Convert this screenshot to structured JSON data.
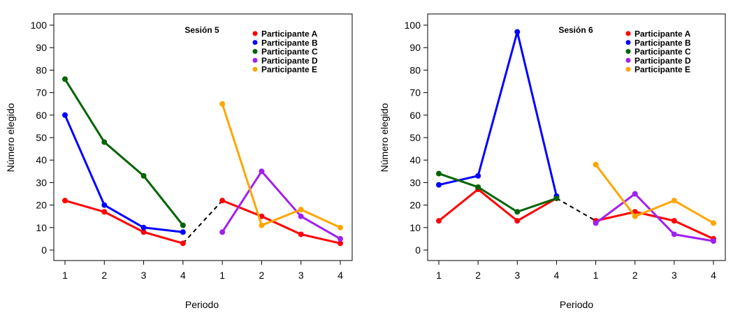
{
  "chart_data": [
    {
      "type": "line",
      "title": "Sesión  5",
      "xlabel": "Periodo",
      "ylabel": "Número elegido",
      "ylim": [
        0,
        100
      ],
      "yticks": [
        0,
        10,
        20,
        30,
        40,
        50,
        60,
        70,
        80,
        90,
        100
      ],
      "x_tick_labels": [
        "1",
        "2",
        "3",
        "4",
        "1",
        "2",
        "3",
        "4"
      ],
      "legend_position": "top-right",
      "series": [
        {
          "name": "Participante A",
          "color": "#ff0000",
          "values": [
            22,
            17,
            8,
            3,
            22,
            15,
            7,
            3
          ]
        },
        {
          "name": "Participante B",
          "color": "#0000ff",
          "values": [
            60,
            20,
            10,
            8,
            null,
            null,
            null,
            null
          ]
        },
        {
          "name": "Participante C",
          "color": "#006400",
          "values": [
            76,
            48,
            33,
            11,
            null,
            null,
            null,
            null
          ]
        },
        {
          "name": "Participante D",
          "color": "#a020f0",
          "values": [
            null,
            null,
            null,
            null,
            8,
            35,
            15,
            5
          ]
        },
        {
          "name": "Participante E",
          "color": "#ffa500",
          "values": [
            null,
            null,
            null,
            null,
            65,
            11,
            18,
            10
          ]
        }
      ],
      "connector": {
        "style": "dashed",
        "color": "#000000",
        "from": {
          "x": "4",
          "y": 3
        },
        "to": {
          "x": "1",
          "y": 22
        }
      }
    },
    {
      "type": "line",
      "title": "Sesión  6",
      "xlabel": "Periodo",
      "ylabel": "Número elegido",
      "ylim": [
        0,
        100
      ],
      "yticks": [
        0,
        10,
        20,
        30,
        40,
        50,
        60,
        70,
        80,
        90,
        100
      ],
      "x_tick_labels": [
        "1",
        "2",
        "3",
        "4",
        "1",
        "2",
        "3",
        "4"
      ],
      "legend_position": "top-right",
      "series": [
        {
          "name": "Participante A",
          "color": "#ff0000",
          "values": [
            13,
            27,
            13,
            23,
            13,
            17,
            13,
            5
          ]
        },
        {
          "name": "Participante B",
          "color": "#0000ff",
          "values": [
            29,
            33,
            97,
            24,
            null,
            null,
            null,
            null
          ]
        },
        {
          "name": "Participante C",
          "color": "#006400",
          "values": [
            34,
            28,
            17,
            23,
            null,
            null,
            null,
            null
          ]
        },
        {
          "name": "Participante D",
          "color": "#a020f0",
          "values": [
            null,
            null,
            null,
            null,
            12,
            25,
            7,
            4
          ]
        },
        {
          "name": "Participante E",
          "color": "#ffa500",
          "values": [
            null,
            null,
            null,
            null,
            38,
            15,
            22,
            12
          ]
        }
      ],
      "connector": {
        "style": "dashed",
        "color": "#000000",
        "from": {
          "x": "4",
          "y": 23
        },
        "to": {
          "x": "1",
          "y": 13
        }
      }
    }
  ]
}
